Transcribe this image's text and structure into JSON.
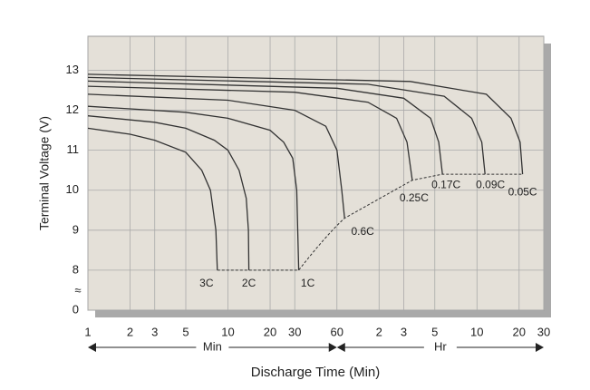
{
  "chart_data": {
    "type": "line",
    "y_label": "Terminal Voltage (V)",
    "x_label": "Discharge Time (Min)",
    "x_units": [
      "Min",
      "Hr"
    ],
    "log_x": true,
    "grid": true,
    "color": "#333333",
    "xlim": [
      1,
      1800
    ],
    "ylim": [
      0,
      13.85
    ],
    "axis_break": [
      0,
      8
    ],
    "xticks": [
      1,
      2,
      3,
      5,
      10,
      20,
      30,
      60,
      {
        "value": 120,
        "label": "2"
      },
      {
        "value": 180,
        "label": "3"
      },
      {
        "value": 300,
        "label": "5"
      },
      {
        "value": 600,
        "label": "10"
      },
      {
        "value": 1200,
        "label": "20"
      },
      {
        "value": 1800,
        "label": "30"
      }
    ],
    "yticks": [
      0,
      8,
      9,
      10,
      11,
      12,
      13
    ],
    "series": [
      {
        "name": "3C",
        "x": [
          1,
          2,
          3,
          5,
          6.5,
          7.5,
          8.2,
          8.4
        ],
        "values": [
          11.55,
          11.4,
          11.25,
          10.95,
          10.5,
          10.0,
          9.0,
          8.0
        ]
      },
      {
        "name": "2C",
        "x": [
          1,
          3,
          5,
          8,
          10,
          12,
          13.5,
          14,
          14.1
        ],
        "values": [
          11.86,
          11.7,
          11.55,
          11.25,
          11.0,
          10.5,
          9.8,
          9.0,
          8.0
        ]
      },
      {
        "name": "1C",
        "x": [
          1,
          5,
          10,
          20,
          25,
          29,
          31,
          31.5,
          32
        ],
        "values": [
          12.1,
          11.95,
          11.8,
          11.5,
          11.2,
          10.8,
          10.0,
          9.0,
          8.0
        ]
      },
      {
        "name": "0.6C",
        "x": [
          1,
          10,
          30,
          50,
          60,
          65,
          68
        ],
        "values": [
          12.4,
          12.25,
          12.0,
          11.6,
          11.0,
          10.0,
          9.3
        ]
      },
      {
        "name": "0.25C",
        "x": [
          1,
          30,
          100,
          160,
          190,
          207
        ],
        "values": [
          12.6,
          12.45,
          12.2,
          11.8,
          11.2,
          10.25
        ]
      },
      {
        "name": "0.17C",
        "x": [
          1,
          60,
          180,
          280,
          320,
          340
        ],
        "values": [
          12.73,
          12.55,
          12.3,
          11.8,
          11.2,
          10.4
        ]
      },
      {
        "name": "0.09C",
        "x": [
          1,
          100,
          350,
          550,
          650,
          685
        ],
        "values": [
          12.82,
          12.65,
          12.35,
          11.8,
          11.2,
          10.4
        ]
      },
      {
        "name": "0.05C",
        "x": [
          1,
          200,
          700,
          1050,
          1220,
          1270
        ],
        "values": [
          12.9,
          12.72,
          12.4,
          11.8,
          11.2,
          10.4
        ]
      }
    ]
  }
}
